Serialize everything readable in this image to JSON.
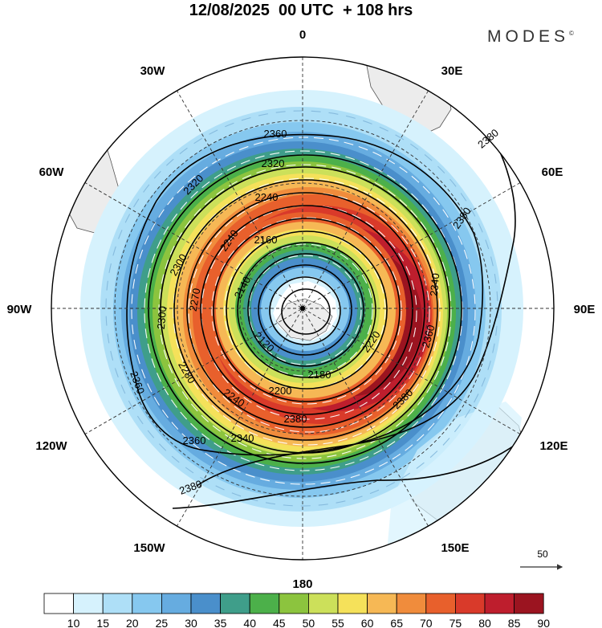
{
  "header": {
    "title": "12/08/2025  00 UTC  + 108 hrs",
    "brand": "MODES",
    "brand_mark": "©"
  },
  "map": {
    "projection": "polar stereographic (south pole)",
    "longitude_labels": [
      "0",
      "30E",
      "60E",
      "90E",
      "120E",
      "150E",
      "180",
      "150W",
      "120W",
      "90W",
      "60W",
      "30W"
    ],
    "contour_labels": [
      "2360",
      "2320",
      "2320",
      "2240",
      "2160",
      "2140",
      "2120",
      "2180",
      "2200",
      "2240",
      "2280",
      "2270",
      "2300",
      "2300",
      "2220",
      "2240",
      "2340",
      "2360",
      "2380",
      "2380",
      "2360",
      "2360",
      "2340",
      "2380",
      "2380",
      "2380"
    ],
    "wind_reference": {
      "value": "50",
      "symbol": "arrow"
    },
    "colors": {
      "land": "#ececec",
      "coast": "#555555",
      "grid": "#333333"
    }
  },
  "colorbar": {
    "ticks": [
      "10",
      "15",
      "20",
      "25",
      "30",
      "35",
      "40",
      "45",
      "50",
      "55",
      "60",
      "65",
      "70",
      "75",
      "80",
      "85",
      "90"
    ],
    "colors": [
      "#ffffff",
      "#d6f2fd",
      "#aedff7",
      "#86c8ef",
      "#66ace0",
      "#4a8fcb",
      "#3f9e8a",
      "#4cb04a",
      "#8cc43e",
      "#cce05a",
      "#f5e15a",
      "#f6b855",
      "#f08c3c",
      "#e8602c",
      "#d93a2a",
      "#be1e2d",
      "#9b1420"
    ]
  }
}
